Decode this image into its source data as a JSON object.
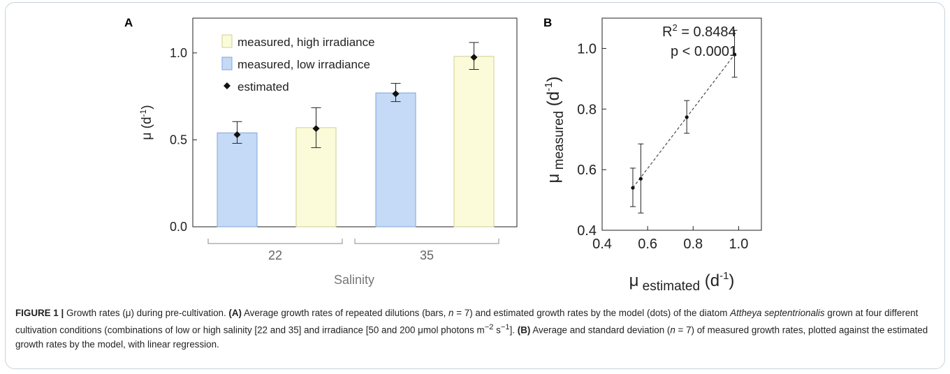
{
  "chart_data": [
    {
      "panel": "A",
      "type": "bar",
      "ylabel_main": "μ (d",
      "ylabel_sup": "-1",
      "ylabel_close": ")",
      "xlabel": "Salinity",
      "ylim": [
        0,
        1.2
      ],
      "yticks": [
        "0.0",
        "0.5",
        "1.0"
      ],
      "groups": [
        "22",
        "35"
      ],
      "legend": [
        {
          "label": "measured, high irradiance",
          "color": "#fbfbd9"
        },
        {
          "label": "measured, low irradiance",
          "color": "#c5daf6"
        },
        {
          "label": "estimated",
          "marker": "diamond"
        }
      ],
      "bars": [
        {
          "group": "22",
          "irradiance": "low",
          "value": 0.54,
          "estimated": 0.53,
          "err_low": 0.48,
          "err_high": 0.605
        },
        {
          "group": "22",
          "irradiance": "high",
          "value": 0.57,
          "estimated": 0.565,
          "err_low": 0.455,
          "err_high": 0.685
        },
        {
          "group": "35",
          "irradiance": "low",
          "value": 0.77,
          "estimated": 0.765,
          "err_low": 0.72,
          "err_high": 0.825
        },
        {
          "group": "35",
          "irradiance": "high",
          "value": 0.98,
          "estimated": 0.975,
          "err_low": 0.905,
          "err_high": 1.06
        }
      ]
    },
    {
      "panel": "B",
      "type": "scatter",
      "xlabel_main": "μ",
      "xlabel_sub": "estimated",
      "xlabel_unit": "(d",
      "xlabel_sup": "-1",
      "xlabel_close": ")",
      "ylabel_main": "μ",
      "ylabel_sub": "measured",
      "ylabel_unit": "(d",
      "ylabel_sup": "-1",
      "ylabel_close": ")",
      "xlim": [
        0.4,
        1.1
      ],
      "ylim": [
        0.4,
        1.1
      ],
      "xticks": [
        "0.4",
        "0.6",
        "0.8",
        "1.0"
      ],
      "yticks": [
        "0.4",
        "0.6",
        "0.8",
        "1.0"
      ],
      "annotation_r2_main": "R",
      "annotation_r2_sup": "2",
      "annotation_r2_value": " = 0.8484",
      "annotation_p": "p < 0.0001",
      "points": [
        {
          "x": 0.535,
          "y": 0.54,
          "err_low": 0.478,
          "err_high": 0.605
        },
        {
          "x": 0.57,
          "y": 0.57,
          "err_low": 0.457,
          "err_high": 0.685
        },
        {
          "x": 0.772,
          "y": 0.773,
          "err_low": 0.72,
          "err_high": 0.828
        },
        {
          "x": 0.982,
          "y": 0.98,
          "err_low": 0.905,
          "err_high": 1.06
        }
      ],
      "regression": {
        "x": [
          0.535,
          0.982
        ],
        "y": [
          0.54,
          0.98
        ]
      }
    }
  ],
  "caption": {
    "lead": "FIGURE 1 |",
    "p1": " Growth rates (μ) during pre-cultivation. ",
    "a_label": "(A)",
    "p2": " Average growth rates of repeated dilutions (bars, ",
    "n1": "n",
    "p3": " = 7) and estimated growth rates by the model (dots) of the diatom ",
    "species": "Attheya septentrionalis",
    "p4": " grown at four different cultivation conditions (combinations of low or high salinity [22 and 35] and irradiance [50 and 200 μmol photons m",
    "sup1": "−2",
    "p5": " s",
    "sup2": "−1",
    "p6": "]. ",
    "b_label": "(B)",
    "p7": " Average and standard deviation (",
    "n2": "n",
    "p8": " = 7) of measured growth rates, plotted against the estimated growth rates by the model, with linear regression."
  }
}
